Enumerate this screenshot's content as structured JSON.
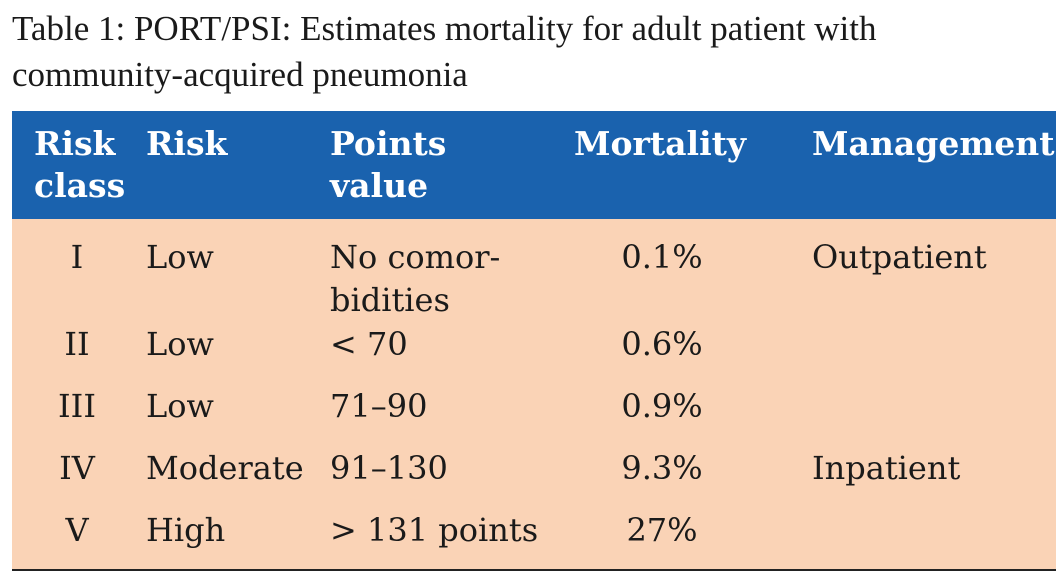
{
  "caption": {
    "line1": "Table 1: PORT/PSI: Estimates mortality for adult patient with",
    "line2": "community-acquired pneumonia"
  },
  "table": {
    "header": {
      "risk_class_line1": "Risk",
      "risk_class_line2": "class",
      "risk": "Risk",
      "points_line1": "Points",
      "points_line2": "value",
      "mortality": "Mortality",
      "management": "Management"
    },
    "rows": [
      {
        "risk_class": "I",
        "risk": "Low",
        "points_line1": "No comor-",
        "points_line2": "bidities",
        "mortality": "0.1%",
        "management": "Outpatient"
      },
      {
        "risk_class": "II",
        "risk": "Low",
        "points_line1": "< 70",
        "points_line2": "",
        "mortality": "0.6%",
        "management": ""
      },
      {
        "risk_class": "III",
        "risk": "Low",
        "points_line1": "71–90",
        "points_line2": "",
        "mortality": "0.9%",
        "management": ""
      },
      {
        "risk_class": "IV",
        "risk": "Moderate",
        "points_line1": "91–130",
        "points_line2": "",
        "mortality": "9.3%",
        "management": "Inpatient"
      },
      {
        "risk_class": "V",
        "risk": "High",
        "points_line1": "> 131 points",
        "points_line2": "",
        "mortality": "27%",
        "management": ""
      }
    ]
  },
  "colors": {
    "header_background": "#1a62ae",
    "header_text": "#ffffff",
    "body_background": "#fad3b6"
  }
}
